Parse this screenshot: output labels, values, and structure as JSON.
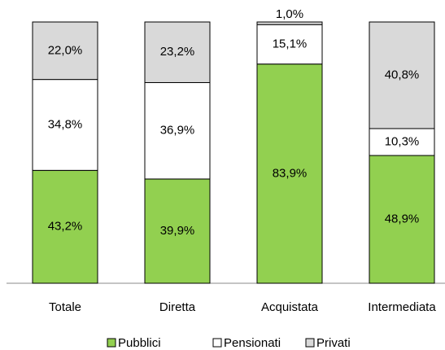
{
  "chart_data": {
    "type": "stacked-bar",
    "categories": [
      "Totale",
      "Diretta",
      "Acquistata",
      "Intermediata"
    ],
    "series": [
      {
        "name": "Pubblici",
        "color": "#92d050",
        "values": [
          43.2,
          39.9,
          83.9,
          48.9
        ],
        "value_labels": [
          "43,2%",
          "39,9%",
          "83,9%",
          "48,9%"
        ]
      },
      {
        "name": "Pensionati",
        "color": "#ffffff",
        "values": [
          34.8,
          36.9,
          15.1,
          10.3
        ],
        "value_labels": [
          "34,8%",
          "36,9%",
          "15,1%",
          "10,3%"
        ]
      },
      {
        "name": "Privati",
        "color": "#d9d9d9",
        "values": [
          22.0,
          23.2,
          1.0,
          40.8
        ],
        "value_labels": [
          "22,0%",
          "23,2%",
          "1,0%",
          "40,8%"
        ]
      }
    ],
    "ylim": [
      0,
      100
    ],
    "legend": "bottom"
  }
}
